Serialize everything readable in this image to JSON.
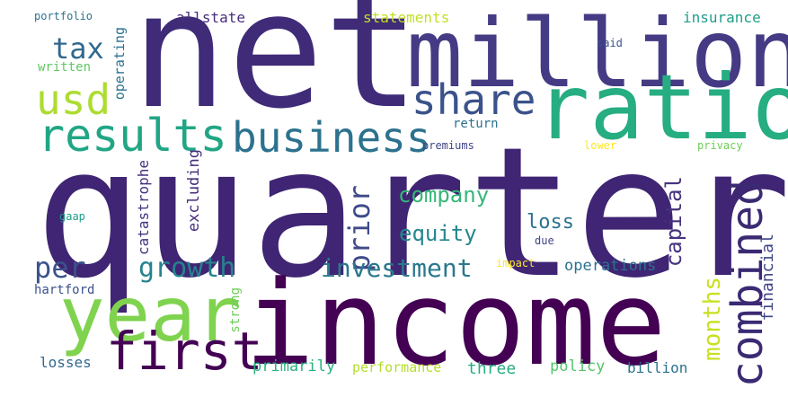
{
  "colors": {
    "background": "#ffffff",
    "palette": [
      "#440154",
      "#472d7b",
      "#3b528b",
      "#2c728e",
      "#21918c",
      "#28ae80",
      "#5ec962",
      "#addc30",
      "#fde725"
    ]
  },
  "words": [
    {
      "text": "quarter",
      "color": "#3f2573"
    },
    {
      "text": "net",
      "color": "#3f2b78"
    },
    {
      "text": "income",
      "color": "#440154"
    },
    {
      "text": "million",
      "color": "#443b84"
    },
    {
      "text": "ratio",
      "color": "#26ad81"
    },
    {
      "text": "year",
      "color": "#7fd34e"
    },
    {
      "text": "results",
      "color": "#21a685"
    },
    {
      "text": "business",
      "color": "#2c728e"
    },
    {
      "text": "share",
      "color": "#3b528b"
    },
    {
      "text": "usd",
      "color": "#addc30"
    },
    {
      "text": "tax",
      "color": "#31688e"
    },
    {
      "text": "first",
      "color": "#440154"
    },
    {
      "text": "combined",
      "color": "#3b2a73"
    },
    {
      "text": "months",
      "color": "#c8e020"
    },
    {
      "text": "capital",
      "color": "#46327e"
    },
    {
      "text": "financial",
      "color": "#414487"
    },
    {
      "text": "prior",
      "color": "#3e4a89"
    },
    {
      "text": "company",
      "color": "#35b779"
    },
    {
      "text": "equity",
      "color": "#24878e"
    },
    {
      "text": "loss",
      "color": "#2c728e"
    },
    {
      "text": "investment",
      "color": "#2a788e"
    },
    {
      "text": "growth",
      "color": "#26828e"
    },
    {
      "text": "per",
      "color": "#3b528b"
    },
    {
      "text": "operations",
      "color": "#2c728e"
    },
    {
      "text": "catastrophe",
      "color": "#46327e"
    },
    {
      "text": "excluding",
      "color": "#472d7b"
    },
    {
      "text": "strong",
      "color": "#6ece58"
    },
    {
      "text": "primarily",
      "color": "#2ab07f"
    },
    {
      "text": "performance",
      "color": "#b5de2b"
    },
    {
      "text": "three",
      "color": "#27ad81"
    },
    {
      "text": "policy",
      "color": "#52c569"
    },
    {
      "text": "billion",
      "color": "#2c728e"
    },
    {
      "text": "losses",
      "color": "#31688e"
    },
    {
      "text": "hartford",
      "color": "#3b528b"
    },
    {
      "text": "gaap",
      "color": "#1e9c89"
    },
    {
      "text": "due",
      "color": "#414487"
    },
    {
      "text": "impact",
      "color": "#fde725"
    },
    {
      "text": "lower",
      "color": "#fde725"
    },
    {
      "text": "privacy",
      "color": "#6ece58"
    },
    {
      "text": "premiums",
      "color": "#414487"
    },
    {
      "text": "return",
      "color": "#2c728e"
    },
    {
      "text": "said",
      "color": "#3b528b"
    },
    {
      "text": "insurance",
      "color": "#1f9e89"
    },
    {
      "text": "statements",
      "color": "#c2df23"
    },
    {
      "text": "allstate",
      "color": "#472d7b"
    },
    {
      "text": "operating",
      "color": "#2c728e"
    },
    {
      "text": "written",
      "color": "#5ec962"
    },
    {
      "text": "portfolio",
      "color": "#2c728e"
    }
  ]
}
